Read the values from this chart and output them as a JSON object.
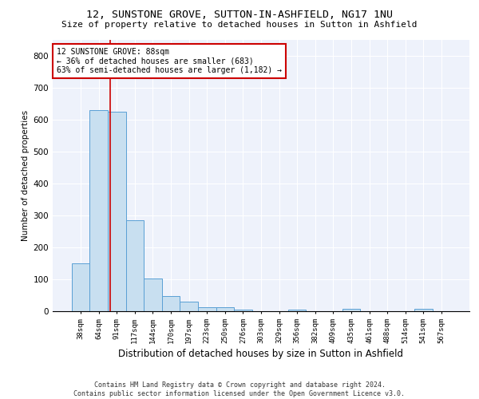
{
  "title": "12, SUNSTONE GROVE, SUTTON-IN-ASHFIELD, NG17 1NU",
  "subtitle": "Size of property relative to detached houses in Sutton in Ashfield",
  "xlabel": "Distribution of detached houses by size in Sutton in Ashfield",
  "ylabel": "Number of detached properties",
  "footer_line1": "Contains HM Land Registry data © Crown copyright and database right 2024.",
  "footer_line2": "Contains public sector information licensed under the Open Government Licence v3.0.",
  "annotation_line1": "12 SUNSTONE GROVE: 88sqm",
  "annotation_line2": "← 36% of detached houses are smaller (683)",
  "annotation_line3": "63% of semi-detached houses are larger (1,182) →",
  "bar_color": "#c8dff0",
  "bar_edge_color": "#5a9fd4",
  "vline_color": "#cc0000",
  "annotation_box_edgecolor": "#cc0000",
  "background_color": "#eef2fb",
  "grid_color": "#ffffff",
  "categories": [
    "38sqm",
    "64sqm",
    "91sqm",
    "117sqm",
    "144sqm",
    "170sqm",
    "197sqm",
    "223sqm",
    "250sqm",
    "276sqm",
    "303sqm",
    "329sqm",
    "356sqm",
    "382sqm",
    "409sqm",
    "435sqm",
    "461sqm",
    "488sqm",
    "514sqm",
    "541sqm",
    "567sqm"
  ],
  "values": [
    150,
    630,
    625,
    285,
    103,
    47,
    30,
    13,
    12,
    5,
    0,
    0,
    5,
    0,
    0,
    7,
    0,
    0,
    0,
    7,
    0
  ],
  "ylim": [
    0,
    850
  ],
  "yticks": [
    0,
    100,
    200,
    300,
    400,
    500,
    600,
    700,
    800
  ],
  "vline_x": 1.62,
  "title_fontsize": 9.5,
  "subtitle_fontsize": 8,
  "ylabel_fontsize": 7.5,
  "xlabel_fontsize": 8.5,
  "tick_fontsize": 6.5,
  "ytick_fontsize": 7.5,
  "annotation_fontsize": 7,
  "footer_fontsize": 6
}
